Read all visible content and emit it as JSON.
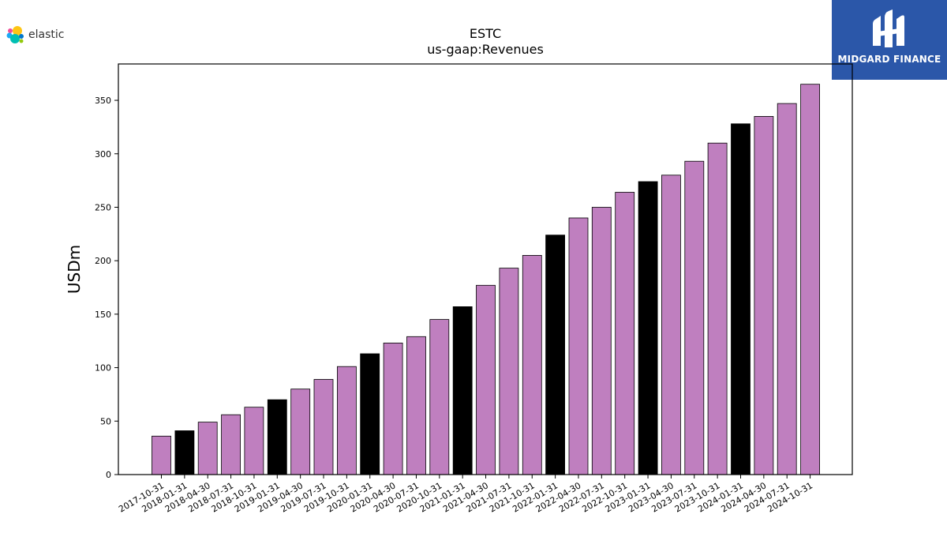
{
  "branding": {
    "left_logo_text": "elastic",
    "right_logo_text": "MIDGARD FINANCE",
    "right_logo_bg": "#2b57a9"
  },
  "chart_data": {
    "type": "bar",
    "title": "ESTC",
    "subtitle": "us-gaap:Revenues",
    "xlabel": "",
    "ylabel": "USDm",
    "ylim": [
      0,
      384
    ],
    "yticks": [
      0,
      50,
      100,
      150,
      200,
      250,
      300,
      350
    ],
    "grid": false,
    "colors": {
      "default": "#bf7fbf",
      "highlight": "#000000"
    },
    "categories": [
      "2017-10-31",
      "2018-01-31",
      "2018-04-30",
      "2018-07-31",
      "2018-10-31",
      "2019-01-31",
      "2019-04-30",
      "2019-07-31",
      "2019-10-31",
      "2020-01-31",
      "2020-04-30",
      "2020-07-31",
      "2020-10-31",
      "2021-01-31",
      "2021-04-30",
      "2021-07-31",
      "2021-10-31",
      "2022-01-31",
      "2022-04-30",
      "2022-07-31",
      "2022-10-31",
      "2023-01-31",
      "2023-04-30",
      "2023-07-31",
      "2023-10-31",
      "2024-01-31",
      "2024-04-30",
      "2024-07-31",
      "2024-10-31"
    ],
    "values": [
      36,
      41,
      49,
      56,
      63,
      70,
      80,
      89,
      101,
      113,
      123,
      129,
      145,
      157,
      177,
      193,
      205,
      224,
      240,
      250,
      264,
      274,
      280,
      293,
      310,
      328,
      335,
      347,
      365
    ],
    "highlight": [
      false,
      true,
      false,
      false,
      false,
      true,
      false,
      false,
      false,
      true,
      false,
      false,
      false,
      true,
      false,
      false,
      false,
      true,
      false,
      false,
      false,
      true,
      false,
      false,
      false,
      true,
      false,
      false,
      false
    ]
  }
}
